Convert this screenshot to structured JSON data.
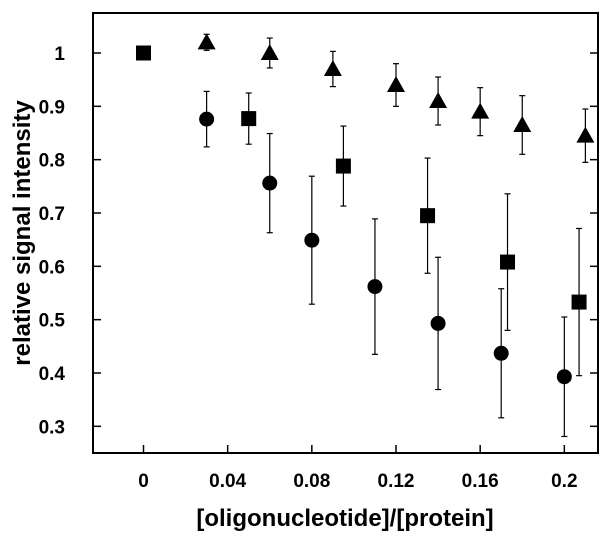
{
  "chart_data": {
    "type": "scatter",
    "title": "",
    "xlabel": "[oligonucleotide]/[protein]",
    "ylabel": "relative signal intensity",
    "xlim": [
      -0.024,
      0.216
    ],
    "ylim": [
      0.25,
      1.075
    ],
    "xticks": [
      "0",
      "0.04",
      "0.08",
      "0.12",
      "0.16",
      "0.2"
    ],
    "yticks": [
      "0.3",
      "0.4",
      "0.5",
      "0.6",
      "0.7",
      "0.8",
      "0.9",
      "1"
    ],
    "grid": false,
    "legend": "none",
    "series": [
      {
        "marker": "triangle",
        "points": [
          {
            "x": 0.03,
            "y": 1.02,
            "err": 0.015
          },
          {
            "x": 0.06,
            "y": 1.0,
            "err": 0.028
          },
          {
            "x": 0.09,
            "y": 0.97,
            "err": 0.033
          },
          {
            "x": 0.12,
            "y": 0.94,
            "err": 0.04
          },
          {
            "x": 0.14,
            "y": 0.91,
            "err": 0.045
          },
          {
            "x": 0.16,
            "y": 0.89,
            "err": 0.045
          },
          {
            "x": 0.18,
            "y": 0.865,
            "err": 0.055
          },
          {
            "x": 0.21,
            "y": 0.845,
            "err": 0.05
          }
        ]
      },
      {
        "marker": "square",
        "points": [
          {
            "x": 0.0,
            "y": 1.0,
            "err": 0.0
          },
          {
            "x": 0.05,
            "y": 0.877,
            "err": 0.048
          },
          {
            "x": 0.095,
            "y": 0.788,
            "err": 0.075
          },
          {
            "x": 0.135,
            "y": 0.695,
            "err": 0.108
          },
          {
            "x": 0.173,
            "y": 0.608,
            "err": 0.128
          },
          {
            "x": 0.207,
            "y": 0.533,
            "err": 0.138
          }
        ]
      },
      {
        "marker": "circle",
        "points": [
          {
            "x": 0.03,
            "y": 0.876,
            "err": 0.052
          },
          {
            "x": 0.06,
            "y": 0.756,
            "err": 0.093
          },
          {
            "x": 0.08,
            "y": 0.649,
            "err": 0.12
          },
          {
            "x": 0.11,
            "y": 0.562,
            "err": 0.127
          },
          {
            "x": 0.14,
            "y": 0.493,
            "err": 0.124
          },
          {
            "x": 0.17,
            "y": 0.437,
            "err": 0.121
          },
          {
            "x": 0.2,
            "y": 0.393,
            "err": 0.112
          }
        ]
      }
    ]
  }
}
